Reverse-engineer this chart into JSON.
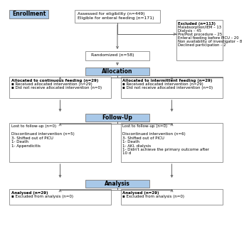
{
  "background_color": "#ffffff",
  "enrollment_label": "Enrollment",
  "header_box_color": "#a8c8e8",
  "top_box_text": "Assessed for eligibility (n=449)\nEligible for enteral feeding (n=171)",
  "excluded_box_text": "Excluded (n=113)\nMalabsorption/IEM – 13\nDialysis – 45\nPre/Post procedure – 25\nEnteral feeding before PICU – 20\nNon availability of investigator – 8\nDeclined participation – 2",
  "randomized_text": "Randomized (n=58)",
  "allocation_label": "Allocation",
  "left_alloc_text": "Allocated to continuous feeding (n=29)\n▪ Received allocated intervention (n=29)\n▪ Did not receive allocated intervention (n=0)",
  "right_alloc_text": "Allocated to intermittent feeding (n=29)\n▪ Received allocated intervention (n=29)\n▪ Did not receive allocated intervention (n=0)",
  "followup_label": "Follow-Up",
  "left_followup_text": "Lost to follow-up (n=0)\n\nDiscontinued intervention (n=5)\n3- Shifted out of PICU\n1- Death\n1- Appendicitis",
  "right_followup_text": "Lost to follow-up (n=0)\n\nDiscontinued intervention (n=6)\n3- Shifted out of PICU\n1- Death\n1- AKI, dialysis\n1- Didn't achieve the primary outcome after\n10 d",
  "analysis_label": "Analysis",
  "left_analysis_text": "Analysed (n=29)\n▪ Excluded from analysis (n=0)",
  "right_analysis_text": "Analysed (n=29)\n▪ Excluded from analysis (n=0)",
  "line_color": "#666666"
}
